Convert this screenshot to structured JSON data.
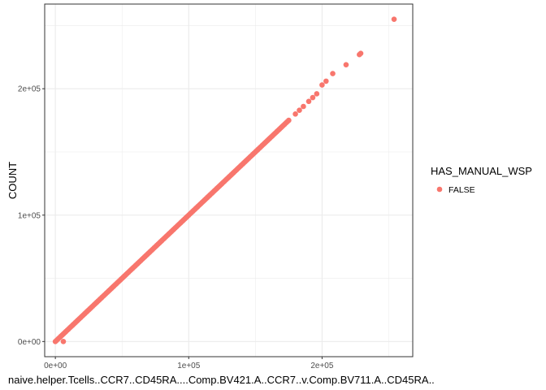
{
  "chart_data": {
    "type": "scatter",
    "title": "",
    "xlabel": "naive.helper.Tcells..CCR7..CD45RA....Comp.BV421.A..CCR7..v.Comp.BV711.A..CD45RA..",
    "ylabel": "COUNT",
    "xlim": [
      -8000,
      268000
    ],
    "ylim": [
      -12000,
      267000
    ],
    "x_ticks": [
      {
        "value": 0,
        "label": "0e+00"
      },
      {
        "value": 100000,
        "label": "1e+05"
      },
      {
        "value": 200000,
        "label": "2e+05"
      }
    ],
    "y_ticks": [
      {
        "value": 0,
        "label": "0e+00"
      },
      {
        "value": 100000,
        "label": "1e+05"
      },
      {
        "value": 200000,
        "label": "2e+05"
      }
    ],
    "grid": true,
    "legend": {
      "title": "HAS_MANUAL_WSP",
      "placement": "right",
      "entries": [
        {
          "label": "FALSE",
          "color": "#f8766d"
        }
      ]
    },
    "series": [
      {
        "name": "FALSE",
        "color": "#f8766d",
        "dense_line": {
          "x_start": 0,
          "x_end": 175000,
          "slope": 1,
          "step": 1000
        },
        "points": [
          {
            "x": 6000,
            "y": 0
          },
          {
            "x": 180000,
            "y": 180000
          },
          {
            "x": 183000,
            "y": 183000
          },
          {
            "x": 186000,
            "y": 186000
          },
          {
            "x": 190000,
            "y": 190000
          },
          {
            "x": 193000,
            "y": 193000
          },
          {
            "x": 196000,
            "y": 196000
          },
          {
            "x": 200000,
            "y": 203000
          },
          {
            "x": 203000,
            "y": 206000
          },
          {
            "x": 208000,
            "y": 212000
          },
          {
            "x": 218000,
            "y": 219000
          },
          {
            "x": 228000,
            "y": 227000
          },
          {
            "x": 229000,
            "y": 228000
          },
          {
            "x": 254000,
            "y": 255000
          }
        ]
      }
    ]
  }
}
